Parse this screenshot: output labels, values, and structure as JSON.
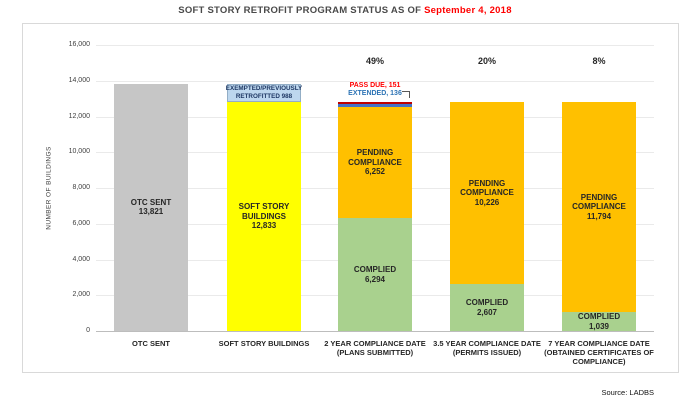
{
  "page": {
    "title_prefix": "SOFT STORY RETROFIT PROGRAM STATUS AS OF ",
    "title_date": "September 4, 2018",
    "source": "Source: LADBS"
  },
  "colors": {
    "gray_bar": "#c6c6c6",
    "yellow_bar": "#ffff00",
    "orange_bar": "#ffc000",
    "green_bar": "#a9d18e",
    "exempt_cap_fill": "#bdd7ee",
    "exempt_cap_border": "#93aec6",
    "extended_strip": "#4472c4",
    "pass_due_strip": "#c00000",
    "pass_due_text": "#ff0000",
    "extended_text": "#2e74b5",
    "title_date_red": "#ff0000"
  },
  "chart_data": {
    "type": "bar",
    "subtype": "stacked",
    "title": "SOFT STORY RETROFIT PROGRAM STATUS AS OF September 4, 2018",
    "ylabel": "NUMBER OF BUILDINGS",
    "xlabel": "",
    "ylim": [
      0,
      16000
    ],
    "grid": true,
    "legend": "none",
    "yticks": [
      {
        "value": 16000,
        "label": "16,000"
      },
      {
        "value": 14000,
        "label": "14,000"
      },
      {
        "value": 12000,
        "label": "12,000"
      },
      {
        "value": 10000,
        "label": "10,000"
      },
      {
        "value": 8000,
        "label": "8,000"
      },
      {
        "value": 6000,
        "label": "6,000"
      },
      {
        "value": 4000,
        "label": "4,000"
      },
      {
        "value": 2000,
        "label": "2,000"
      },
      {
        "value": 0,
        "label": "0"
      }
    ],
    "categories": [
      {
        "label_lines": [
          "OTC SENT"
        ],
        "percent": "",
        "total": 13821,
        "segments": [
          {
            "name": "otc-sent",
            "value": 13821,
            "fill": "#c6c6c6",
            "text_lines": [
              "OTC SENT",
              "13,821"
            ]
          }
        ]
      },
      {
        "label_lines": [
          "SOFT STORY BUILDINGS"
        ],
        "percent": "",
        "total": 13821,
        "segments": [
          {
            "name": "soft-story-buildings",
            "value": 12833,
            "fill": "#ffff00",
            "text_lines": [
              "SOFT STORY",
              "BUILDINGS",
              "12,833"
            ]
          },
          {
            "name": "exempted-previously-retrofitted",
            "value": 988,
            "fill": "#bdd7ee",
            "border": "#93aec6",
            "small": true,
            "text_lines": [
              "EXEMPTED/PREVIOUSLY",
              "RETROFITTED 988"
            ]
          }
        ]
      },
      {
        "label_lines": [
          "2 YEAR COMPLIANCE DATE",
          "(PLANS SUBMITTED)"
        ],
        "percent": "49%",
        "total": 12833,
        "segments": [
          {
            "name": "complied-2yr",
            "value": 6294,
            "fill": "#a9d18e",
            "text_lines": [
              "COMPLIED",
              "6,294"
            ]
          },
          {
            "name": "pending-compliance-2yr",
            "value": 6252,
            "fill": "#ffc000",
            "text_lines": [
              "PENDING",
              "COMPLIANCE",
              "6,252"
            ]
          },
          {
            "name": "extended-2yr",
            "value": 136,
            "fill": "#4472c4",
            "callout": "EXTENDED, 136",
            "callout_color": "#2e74b5",
            "callout_order": 2,
            "callout_bracket": true
          },
          {
            "name": "pass-due-2yr",
            "value": 151,
            "fill": "#c00000",
            "callout": "PASS DUE, 151",
            "callout_color": "#ff0000",
            "callout_order": 1
          }
        ]
      },
      {
        "label_lines": [
          "3.5 YEAR COMPLIANCE DATE",
          "(PERMITS ISSUED)"
        ],
        "percent": "20%",
        "total": 12833,
        "segments": [
          {
            "name": "complied-3-5yr",
            "value": 2607,
            "fill": "#a9d18e",
            "text_lines": [
              "COMPLIED",
              "2,607"
            ]
          },
          {
            "name": "pending-compliance-3-5yr",
            "value": 10226,
            "fill": "#ffc000",
            "text_lines": [
              "PENDING",
              "COMPLIANCE",
              "10,226"
            ]
          }
        ]
      },
      {
        "label_lines": [
          "7 YEAR COMPLIANCE DATE",
          "(OBTAINED CERTIFICATES OF",
          "COMPLIANCE)"
        ],
        "percent": "8%",
        "total": 12833,
        "segments": [
          {
            "name": "complied-7yr",
            "value": 1039,
            "fill": "#a9d18e",
            "text_lines": [
              "COMPLIED",
              "1,039"
            ]
          },
          {
            "name": "pending-compliance-7yr",
            "value": 11794,
            "fill": "#ffc000",
            "text_lines": [
              "PENDING",
              "COMPLIANCE",
              "11,794"
            ]
          }
        ]
      }
    ]
  }
}
